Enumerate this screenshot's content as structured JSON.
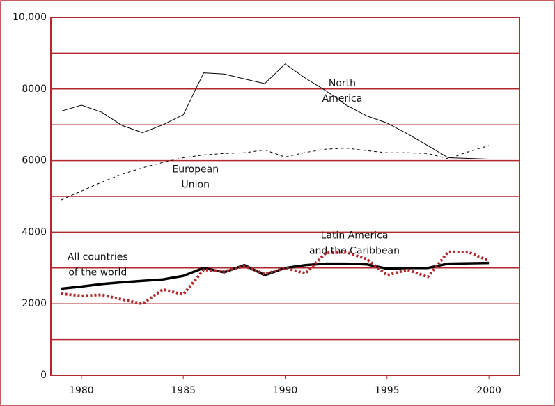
{
  "chart_data": {
    "type": "line",
    "x": [
      1979,
      1980,
      1981,
      1982,
      1983,
      1984,
      1985,
      1986,
      1987,
      1988,
      1989,
      1990,
      1991,
      1992,
      1993,
      1994,
      1995,
      1996,
      1997,
      1998,
      1999,
      2000
    ],
    "xlim": [
      1978.5,
      2001.5
    ],
    "xticks": [
      1980,
      1985,
      1990,
      1995,
      2000
    ],
    "ylim": [
      0,
      10000
    ],
    "yticks": [
      0,
      2000,
      4000,
      6000,
      8000,
      {
        "value": 10000,
        "label": "10,000"
      }
    ],
    "minor_yticks": [
      1000,
      3000,
      5000,
      7000,
      9000
    ],
    "grid": true,
    "grid_color": "#b3282d",
    "series": [
      {
        "name": "North America",
        "color": "#000000",
        "style": "solid",
        "width": 1,
        "values": [
          7380,
          7550,
          7350,
          6980,
          6780,
          7000,
          7280,
          8450,
          8420,
          8280,
          8150,
          8700,
          8300,
          7950,
          7550,
          7250,
          7050,
          6750,
          6420,
          6080,
          6060,
          6040
        ]
      },
      {
        "name": "European Union",
        "color": "#000000",
        "style": "dashed",
        "width": 1,
        "values": [
          4900,
          5150,
          5400,
          5620,
          5800,
          5950,
          6080,
          6160,
          6200,
          6220,
          6300,
          6100,
          6230,
          6320,
          6350,
          6280,
          6220,
          6220,
          6200,
          6050,
          6250,
          6420
        ]
      },
      {
        "name": "All countries of the world",
        "color": "#000000",
        "style": "solid",
        "width": 3.5,
        "values": [
          2420,
          2480,
          2550,
          2600,
          2640,
          2680,
          2780,
          3000,
          2880,
          3080,
          2800,
          3000,
          3080,
          3120,
          3120,
          3100,
          2980,
          3000,
          3000,
          3120,
          3130,
          3140
        ]
      },
      {
        "name": "Latin America and the Caribbean",
        "color": "#b3282d",
        "style": "dotted",
        "width": 4,
        "values": [
          2280,
          2220,
          2250,
          2120,
          2000,
          2400,
          2260,
          2950,
          2900,
          3050,
          2830,
          3000,
          2850,
          3420,
          3440,
          3250,
          2800,
          2950,
          2750,
          3450,
          3440,
          3200
        ]
      }
    ],
    "annotations": [
      {
        "lines": [
          "North",
          "America"
        ],
        "x": 1992.8,
        "y": 8150
      },
      {
        "lines": [
          "European",
          "Union"
        ],
        "x": 1985.6,
        "y": 5750
      },
      {
        "lines": [
          "Latin America",
          "and the Caribbean"
        ],
        "x": 1993.4,
        "y": 3900
      },
      {
        "lines": [
          "All countries",
          "of the world"
        ],
        "x": 1980.8,
        "y": 3300
      }
    ]
  }
}
